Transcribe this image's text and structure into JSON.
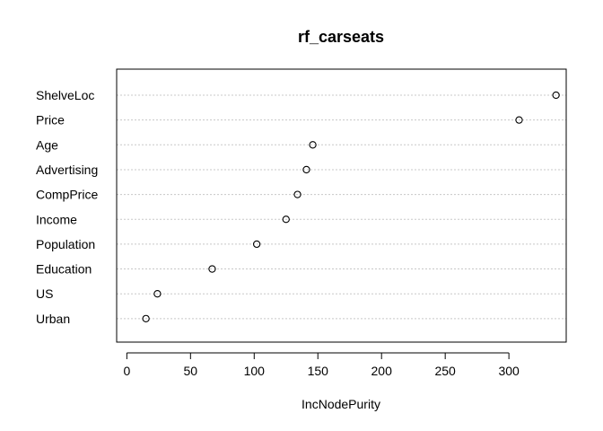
{
  "chart_data": {
    "type": "scatter",
    "title": "rf_carseats",
    "xlabel": "IncNodePurity",
    "ylabel": "",
    "xlim": [
      -8,
      345
    ],
    "xticks": [
      0,
      50,
      100,
      150,
      200,
      250,
      300
    ],
    "grid": "dotted horizontal",
    "categories": [
      "ShelveLoc",
      "Price",
      "Age",
      "Advertising",
      "CompPrice",
      "Income",
      "Population",
      "Education",
      "US",
      "Urban"
    ],
    "values": [
      337,
      308,
      146,
      141,
      134,
      125,
      102,
      67,
      24,
      15
    ]
  }
}
